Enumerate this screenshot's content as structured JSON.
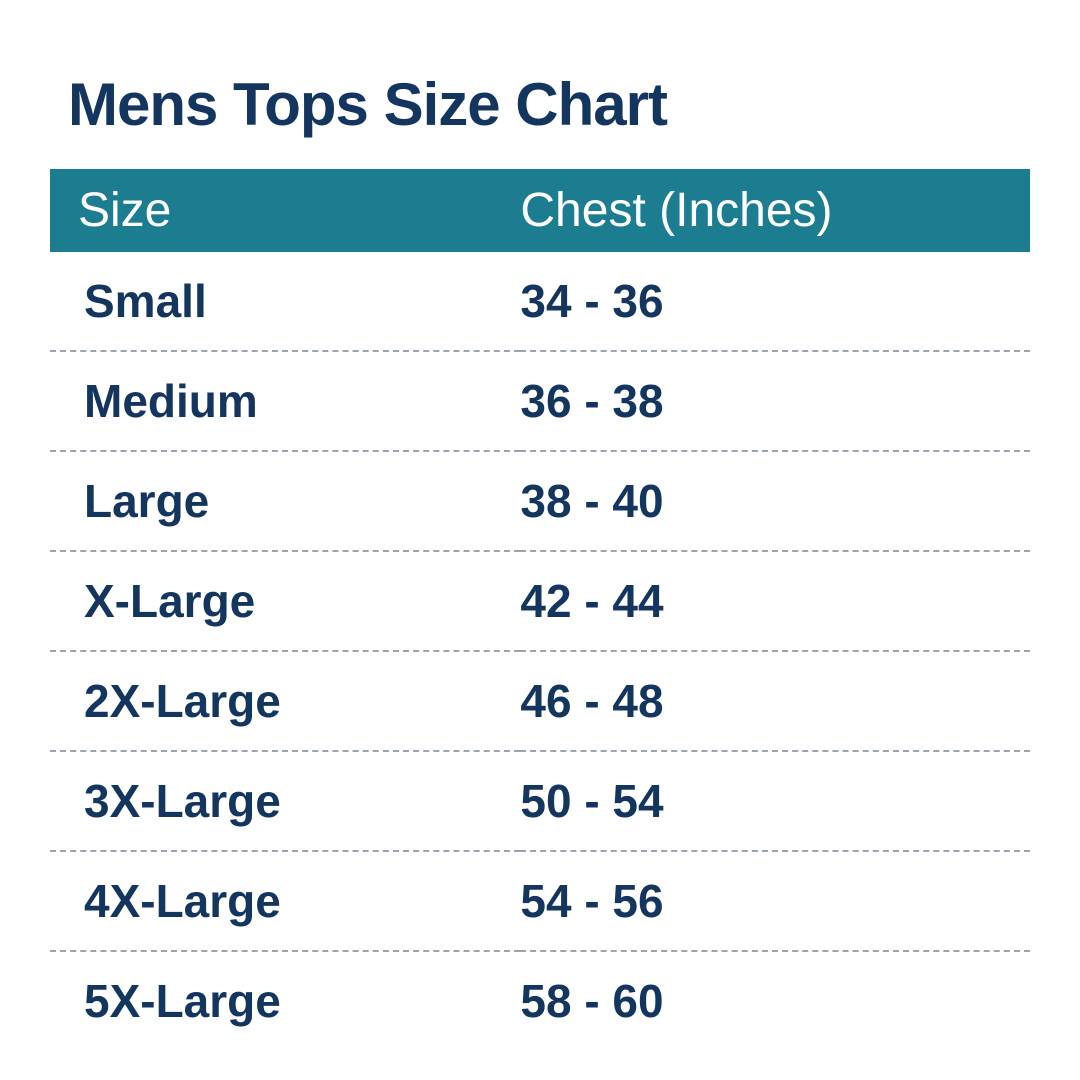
{
  "title": "Mens Tops Size Chart",
  "table": {
    "type": "table",
    "columns": [
      "Size",
      "Chest (Inches)"
    ],
    "rows": [
      [
        "Small",
        "34 - 36"
      ],
      [
        "Medium",
        "36 - 38"
      ],
      [
        "Large",
        "38 - 40"
      ],
      [
        "X-Large",
        "42 - 44"
      ],
      [
        "2X-Large",
        "46 - 48"
      ],
      [
        "3X-Large",
        "50 - 54"
      ],
      [
        "4X-Large",
        "54 - 56"
      ],
      [
        "5X-Large",
        "58 - 60"
      ]
    ],
    "header_bg_color": "#1c7d91",
    "header_text_color": "#ffffff",
    "body_text_color": "#14365e",
    "title_text_color": "#14365e",
    "row_divider_color": "#9aa5b0",
    "row_divider_style": "dashed",
    "background_color": "#ffffff",
    "title_fontsize": 60,
    "header_fontsize": 48,
    "body_fontsize": 46,
    "title_fontweight": 900,
    "body_fontweight": 600,
    "column_widths": [
      "48%",
      "52%"
    ]
  }
}
